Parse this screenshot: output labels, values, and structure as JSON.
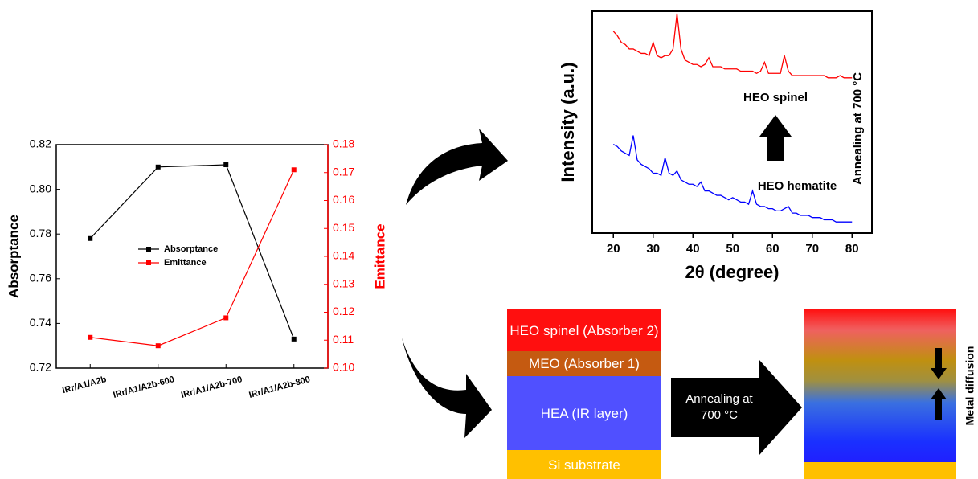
{
  "chart_data": [
    {
      "type": "line",
      "categories": [
        "IRr/A1/A2b",
        "IRr/A1/A2b-600",
        "IRr/A1/A2b-700",
        "IRr/A1/A2b-800"
      ],
      "series": [
        {
          "name": "Absorptance",
          "color": "#000000",
          "values": [
            0.778,
            0.81,
            0.811,
            0.733
          ]
        },
        {
          "name": "Emittance",
          "color": "#ff0000",
          "axis": "y2",
          "values": [
            0.111,
            0.108,
            0.118,
            0.171
          ]
        }
      ],
      "ylabel": "Absorptance",
      "y2label": "Emittance",
      "ylim": [
        0.72,
        0.82
      ],
      "yticks": [
        0.72,
        0.74,
        0.76,
        0.78,
        {
          "value": 0.8,
          "label": "0.80"
        },
        0.82
      ],
      "y2lim": [
        0.1,
        0.18
      ],
      "y2ticks": [
        {
          "value": 0.1,
          "label": "0.10"
        },
        0.11,
        0.12,
        0.13,
        0.14,
        0.15,
        0.16,
        0.17,
        0.18
      ],
      "legend": "center"
    },
    {
      "type": "line",
      "xlabel": "2θ (degree)",
      "ylabel": "Intensity (a.u.)",
      "x": [
        20,
        21,
        22,
        23,
        24,
        25,
        26,
        27,
        28,
        29,
        30,
        31,
        32,
        33,
        34,
        35,
        36,
        37,
        38,
        39,
        40,
        41,
        42,
        43,
        44,
        45,
        46,
        47,
        48,
        49,
        50,
        51,
        52,
        53,
        54,
        55,
        56,
        57,
        58,
        59,
        60,
        61,
        62,
        63,
        64,
        65,
        66,
        67,
        68,
        69,
        70,
        71,
        72,
        73,
        74,
        75,
        76,
        77,
        78,
        79,
        80
      ],
      "series": [
        {
          "name": "HEO spinel",
          "color": "#ff0000",
          "values": [
            91,
            89,
            86,
            85,
            83,
            83,
            82,
            81,
            81,
            80,
            86,
            80,
            79,
            80,
            80,
            83,
            99,
            83,
            78,
            77,
            76,
            76,
            75,
            76,
            79,
            75,
            75,
            75,
            74,
            74,
            74,
            74,
            73,
            73,
            73,
            73,
            72,
            73,
            77,
            72,
            72,
            72,
            72,
            80,
            73,
            71,
            71,
            71,
            71,
            71,
            71,
            71,
            71,
            71,
            70,
            70,
            70,
            71,
            70,
            70,
            70
          ]
        },
        {
          "name": "HEO hematite",
          "color": "#0000ff",
          "values": [
            40,
            39,
            37,
            36,
            35,
            44,
            33,
            31,
            30,
            29,
            27,
            27,
            26,
            34,
            27,
            26,
            28,
            24,
            23,
            22,
            22,
            21,
            23,
            19,
            19,
            18,
            17,
            17,
            16,
            15,
            16,
            15,
            14,
            14,
            13,
            19,
            13,
            12,
            12,
            11,
            11,
            10,
            10,
            11,
            12,
            9,
            9,
            8,
            8,
            8,
            7,
            7,
            7,
            6,
            6,
            6,
            5,
            5,
            5,
            5,
            5
          ]
        }
      ],
      "xlim": [
        14.7,
        85
      ],
      "xticks": [
        20,
        30,
        40,
        50,
        60,
        70,
        80
      ],
      "ylim": [
        0,
        100
      ],
      "annotation": "Annealing at 700 °C"
    }
  ],
  "diagram": {
    "before": [
      "HEO spinel (Absorber 2)",
      "MEO (Absorber 1)",
      "HEA (IR layer)",
      "Si substrate"
    ],
    "process": "Annealing at 700 °C",
    "after_label": "Metal diffusion"
  }
}
